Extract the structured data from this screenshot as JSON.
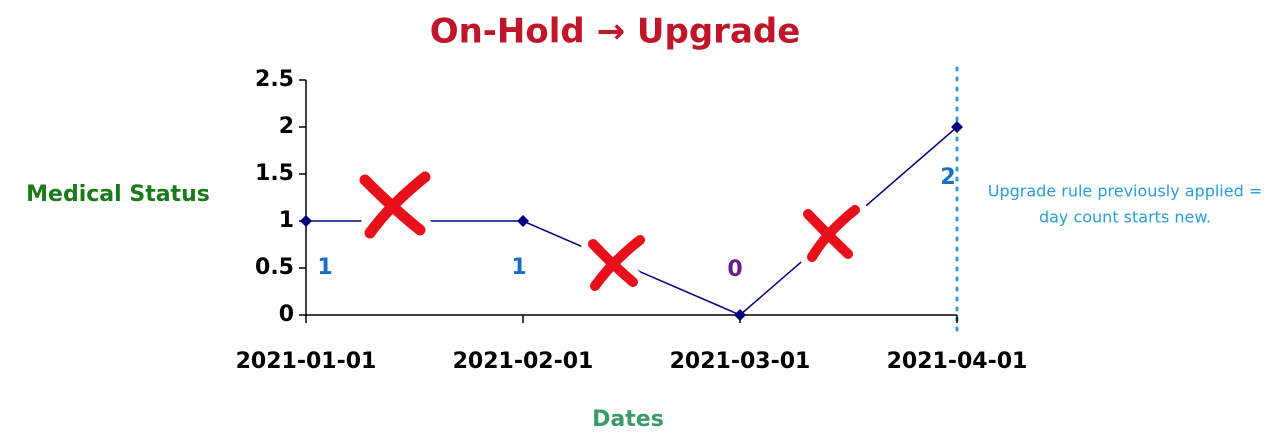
{
  "chart_data": {
    "type": "line",
    "title": "On-Hold → Upgrade",
    "title_color": "#c0162a",
    "y_label": "Medical Status",
    "x_label": "Dates",
    "y_label_color": "#1a7a1a",
    "x_label_color": "#3a9a6a",
    "categories": [
      "2021-01-01",
      "2021-02-01",
      "2021-03-01",
      "2021-04-01"
    ],
    "values": [
      1,
      1,
      0,
      2
    ],
    "color": "#000080",
    "value_label_colors": [
      "#1a6fc4",
      "#1a6fc4",
      "#6a1a8a",
      "#1a6fc4"
    ],
    "ylim": [
      0,
      2.5
    ],
    "yticks": [
      0,
      0.5,
      1,
      1.5,
      2,
      2.5
    ],
    "annotations": [
      "Upgrade rule previously applied =",
      "day count starts new."
    ],
    "annotation_color": "#2a9fd6"
  }
}
